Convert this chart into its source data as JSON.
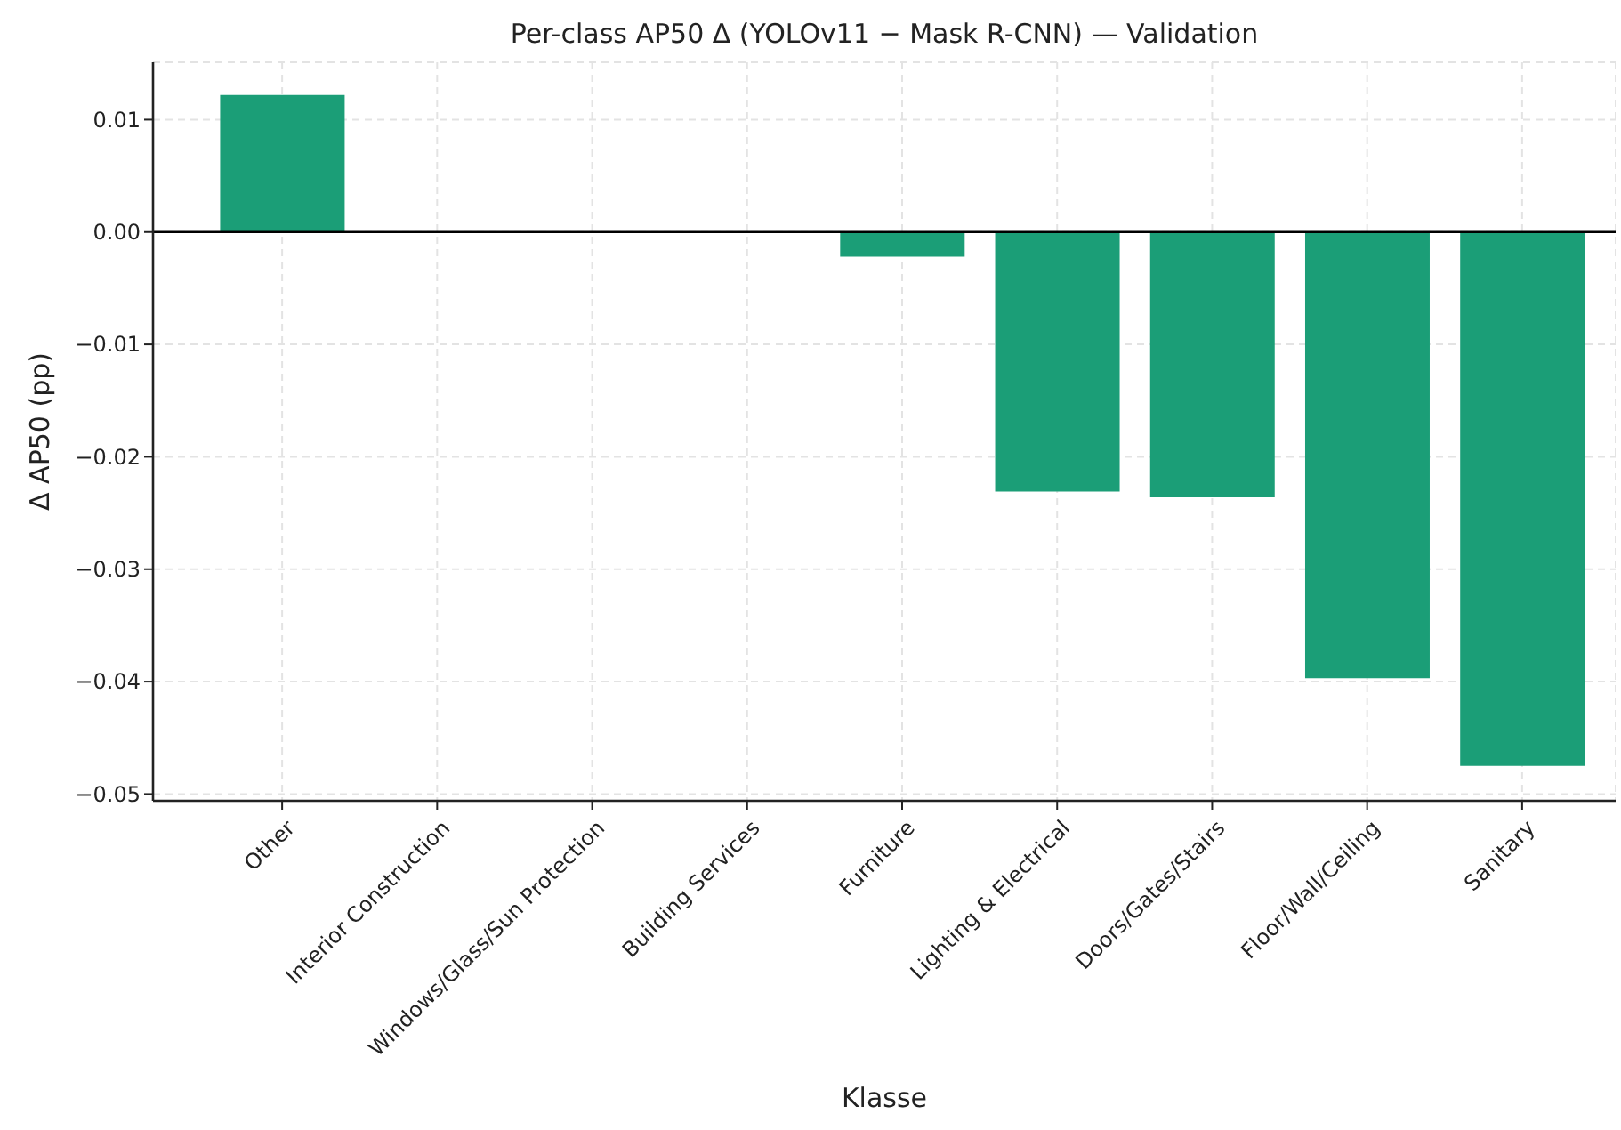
{
  "chart_data": {
    "type": "bar",
    "title": "Per-class AP50 Δ (YOLOv11 − Mask R-CNN) — Validation",
    "xlabel": "Klasse",
    "ylabel": "Δ AP50 (pp)",
    "categories": [
      "Other",
      "Interior Construction",
      "Windows/Glass/Sun Protection",
      "Building Services",
      "Furniture",
      "Lighting & Electrical",
      "Doors/Gates/Stairs",
      "Floor/Wall/Ceiling",
      "Sanitary"
    ],
    "values": [
      0.0122,
      0,
      0,
      0,
      -0.0022,
      -0.0231,
      -0.0236,
      -0.0397,
      -0.0475
    ],
    "color": "#1b9e77",
    "ylim": [
      -0.0506,
      0.0151
    ],
    "yticks": [
      {
        "value": -0.05,
        "label": "−0.05"
      },
      {
        "value": -0.04,
        "label": "−0.04"
      },
      {
        "value": -0.03,
        "label": "−0.03"
      },
      {
        "value": -0.02,
        "label": "−0.02"
      },
      {
        "value": -0.01,
        "label": "−0.01"
      },
      {
        "value": 0,
        "label": "0.00"
      },
      {
        "value": 0.01,
        "label": "0.01"
      }
    ],
    "grid": true,
    "ref_lines": [
      {
        "axis": "y",
        "value": 0,
        "color": "#000000"
      }
    ]
  }
}
